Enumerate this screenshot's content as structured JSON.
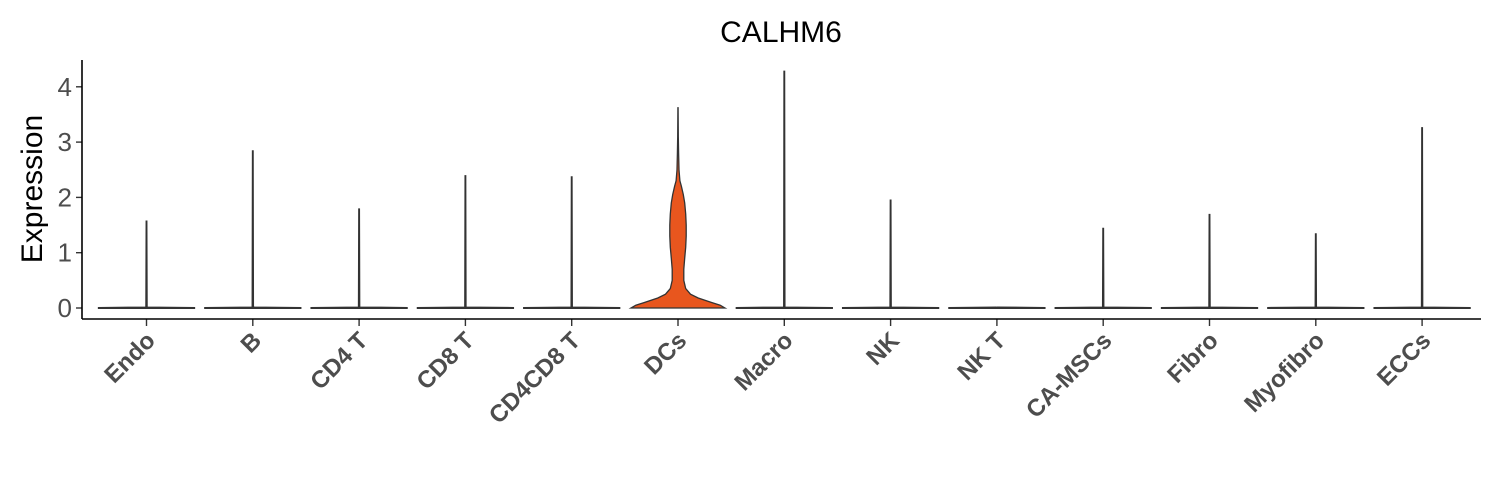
{
  "chart_data": {
    "type": "violin",
    "title": "CALHM6",
    "xlabel": "",
    "ylabel": "Expression",
    "ylim": [
      0,
      4.3
    ],
    "yticks": [
      0,
      1,
      2,
      3,
      4
    ],
    "grid": false,
    "legend": "none",
    "fill_color": "#E8561E",
    "outline_color": "#333333",
    "categories": [
      "Endo",
      "B",
      "CD4 T",
      "CD8 T",
      "CD4CD8 T",
      "DCs",
      "Macro",
      "NK",
      "NK T",
      "CA-MSCs",
      "Fibro",
      "Myofibro",
      "ECCs"
    ],
    "max_values": [
      1.57,
      2.84,
      1.79,
      2.39,
      2.37,
      3.62,
      4.28,
      1.95,
      0.0,
      1.44,
      1.69,
      1.34,
      3.26
    ],
    "violins": [
      {
        "profile": []
      },
      {
        "profile": []
      },
      {
        "profile": []
      },
      {
        "profile": []
      },
      {
        "profile": []
      },
      {
        "profile": [
          [
            0,
            0.98
          ],
          [
            0.05,
            0.88
          ],
          [
            0.1,
            0.7
          ],
          [
            0.18,
            0.42
          ],
          [
            0.25,
            0.26
          ],
          [
            0.35,
            0.16
          ],
          [
            0.5,
            0.12
          ],
          [
            0.7,
            0.12
          ],
          [
            0.9,
            0.14
          ],
          [
            1.1,
            0.16
          ],
          [
            1.3,
            0.17
          ],
          [
            1.5,
            0.17
          ],
          [
            1.7,
            0.16
          ],
          [
            1.9,
            0.14
          ],
          [
            2.05,
            0.11
          ],
          [
            2.2,
            0.07
          ],
          [
            2.3,
            0.04
          ],
          [
            2.5,
            0.02
          ],
          [
            2.8,
            0.012
          ],
          [
            3.1,
            0.006
          ],
          [
            3.62,
            0.002
          ]
        ]
      },
      {
        "profile": []
      },
      {
        "profile": []
      },
      {
        "profile": []
      },
      {
        "profile": []
      },
      {
        "profile": []
      },
      {
        "profile": []
      },
      {
        "profile": []
      }
    ]
  }
}
